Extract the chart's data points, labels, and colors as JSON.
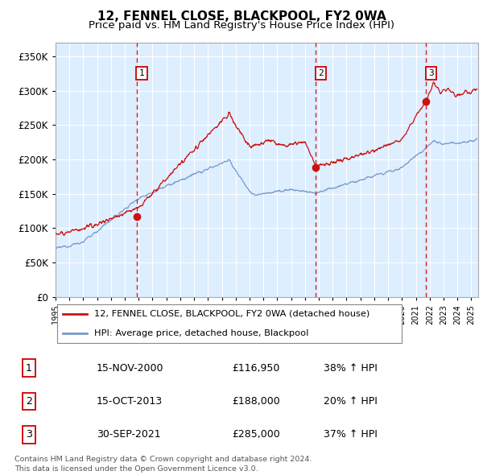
{
  "title": "12, FENNEL CLOSE, BLACKPOOL, FY2 0WA",
  "subtitle": "Price paid vs. HM Land Registry's House Price Index (HPI)",
  "title_fontsize": 11,
  "subtitle_fontsize": 9.5,
  "ytick_values": [
    0,
    50000,
    100000,
    150000,
    200000,
    250000,
    300000,
    350000
  ],
  "ylim": [
    0,
    370000
  ],
  "xlim_start": 1995.0,
  "xlim_end": 2025.5,
  "sale_dates": [
    2000.875,
    2013.792,
    2021.75
  ],
  "sale_prices": [
    116950,
    188000,
    285000
  ],
  "sale_labels": [
    "1",
    "2",
    "3"
  ],
  "vline_color": "#cc2222",
  "sale_box_color": "#cc0000",
  "hpi_line_color": "#7799cc",
  "price_line_color": "#cc1111",
  "fig_bg_color": "#ffffff",
  "plot_bg_color": "#ddeeff",
  "legend_line1": "12, FENNEL CLOSE, BLACKPOOL, FY2 0WA (detached house)",
  "legend_line2": "HPI: Average price, detached house, Blackpool",
  "table_data": [
    [
      "1",
      "15-NOV-2000",
      "£116,950",
      "38% ↑ HPI"
    ],
    [
      "2",
      "15-OCT-2013",
      "£188,000",
      "20% ↑ HPI"
    ],
    [
      "3",
      "30-SEP-2021",
      "£285,000",
      "37% ↑ HPI"
    ]
  ],
  "footnote": "Contains HM Land Registry data © Crown copyright and database right 2024.\nThis data is licensed under the Open Government Licence v3.0.",
  "grid_color": "#ccccdd",
  "axis_label_color": "#222222"
}
